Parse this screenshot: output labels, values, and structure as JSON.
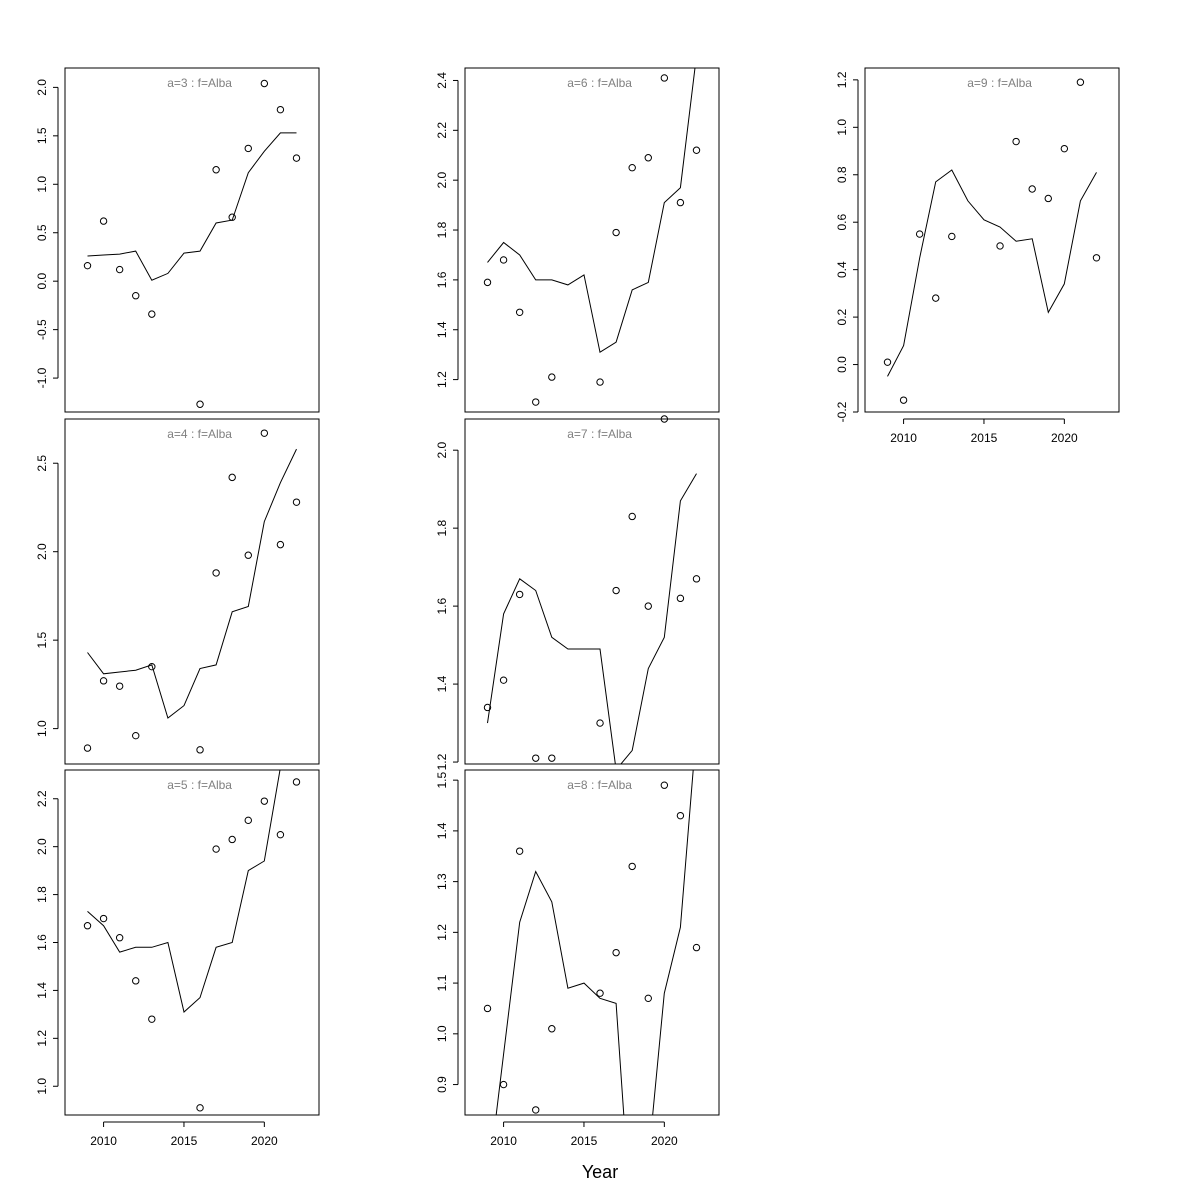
{
  "chart_data": {
    "type": "scatter",
    "xlabel": "Year",
    "x_ticks": [
      2010,
      2015,
      2020
    ],
    "panels": [
      {
        "label": "a=3  :  f=Alba",
        "x": [
          2009,
          2010,
          2011,
          2012,
          2013,
          2014,
          2015,
          2016,
          2017,
          2018,
          2019,
          2020,
          2021,
          2022
        ],
        "observed": [
          0.16,
          0.62,
          0.12,
          -0.15,
          -0.34,
          null,
          null,
          -1.27,
          1.15,
          0.66,
          1.37,
          2.04,
          1.77,
          1.27
        ],
        "fitted": [
          0.26,
          0.27,
          0.28,
          0.31,
          0.01,
          0.08,
          0.29,
          0.31,
          0.6,
          0.63,
          1.12,
          1.34,
          1.53,
          1.53
        ],
        "ylim": [
          -1.35,
          2.2
        ],
        "y_ticks": [
          -1.0,
          -0.5,
          0.0,
          0.5,
          1.0,
          1.5,
          2.0
        ],
        "y_tick_labels": [
          "-1.0",
          "-0.5",
          "0.0",
          "0.5",
          "1.0",
          "1.5",
          "2.0"
        ]
      },
      {
        "label": "a=4  :  f=Alba",
        "x": [
          2009,
          2010,
          2011,
          2012,
          2013,
          2014,
          2015,
          2016,
          2017,
          2018,
          2019,
          2020,
          2021,
          2022
        ],
        "observed": [
          0.89,
          1.27,
          1.24,
          0.96,
          1.35,
          null,
          null,
          0.88,
          1.88,
          2.42,
          1.98,
          2.67,
          2.04,
          2.28
        ],
        "fitted": [
          1.43,
          1.31,
          1.32,
          1.33,
          1.36,
          1.06,
          1.13,
          1.34,
          1.36,
          1.66,
          1.69,
          2.17,
          2.39,
          2.58
        ],
        "ylim": [
          0.8,
          2.75
        ],
        "y_ticks": [
          1.0,
          1.5,
          2.0,
          2.5
        ],
        "y_tick_labels": [
          "1.0",
          "1.5",
          "2.0",
          "2.5"
        ]
      },
      {
        "label": "a=5  :  f=Alba",
        "x": [
          2009,
          2010,
          2011,
          2012,
          2013,
          2014,
          2015,
          2016,
          2017,
          2018,
          2019,
          2020,
          2021,
          2022
        ],
        "observed": [
          1.67,
          1.7,
          1.62,
          1.44,
          1.28,
          null,
          null,
          0.91,
          1.99,
          2.03,
          2.11,
          2.19,
          2.05,
          2.27
        ],
        "fitted": [
          1.73,
          1.67,
          1.56,
          1.58,
          1.58,
          1.6,
          1.31,
          1.37,
          1.58,
          1.6,
          1.9,
          1.94,
          2.33,
          2.72
        ],
        "ylim": [
          0.88,
          2.32
        ],
        "y_ticks": [
          1.0,
          1.2,
          1.4,
          1.6,
          1.8,
          2.0,
          2.2
        ],
        "y_tick_labels": [
          "1.0",
          "1.2",
          "1.4",
          "1.6",
          "1.8",
          "2.0",
          "2.2"
        ]
      },
      {
        "label": "a=6  :  f=Alba",
        "x": [
          2009,
          2010,
          2011,
          2012,
          2013,
          2014,
          2015,
          2016,
          2017,
          2018,
          2019,
          2020,
          2021,
          2022
        ],
        "observed": [
          1.59,
          1.68,
          1.47,
          1.11,
          1.21,
          null,
          null,
          1.19,
          1.79,
          2.05,
          2.09,
          2.41,
          1.91,
          2.12
        ],
        "fitted": [
          1.67,
          1.75,
          1.7,
          1.6,
          1.6,
          1.58,
          1.62,
          1.31,
          1.35,
          1.56,
          1.59,
          1.91,
          1.97,
          2.5
        ],
        "ylim": [
          1.07,
          2.45
        ],
        "y_ticks": [
          1.2,
          1.4,
          1.6,
          1.8,
          2.0,
          2.2,
          2.4
        ],
        "y_tick_labels": [
          "1.2",
          "1.4",
          "1.6",
          "1.8",
          "2.0",
          "2.2",
          "2.4"
        ]
      },
      {
        "label": "a=7  :  f=Alba",
        "x": [
          2009,
          2010,
          2011,
          2012,
          2013,
          2014,
          2015,
          2016,
          2017,
          2018,
          2019,
          2020,
          2021,
          2022
        ],
        "observed": [
          1.34,
          1.41,
          1.63,
          1.21,
          1.21,
          null,
          null,
          1.3,
          1.64,
          1.83,
          1.6,
          2.08,
          1.62,
          1.67
        ],
        "fitted": [
          1.3,
          1.58,
          1.67,
          1.64,
          1.52,
          1.49,
          1.49,
          1.49,
          1.18,
          1.23,
          1.44,
          1.52,
          1.87,
          1.94
        ],
        "ylim": [
          1.195,
          2.08
        ],
        "y_ticks": [
          1.2,
          1.4,
          1.6,
          1.8,
          2.0
        ],
        "y_tick_labels": [
          "1.2",
          "1.4",
          "1.6",
          "1.8",
          "2.0"
        ]
      },
      {
        "label": "a=8  :  f=Alba",
        "x": [
          2009,
          2010,
          2011,
          2012,
          2013,
          2014,
          2015,
          2016,
          2017,
          2018,
          2019,
          2020,
          2021,
          2022
        ],
        "observed": [
          1.05,
          0.9,
          1.36,
          0.85,
          1.01,
          null,
          null,
          1.08,
          1.16,
          1.33,
          1.07,
          1.49,
          1.43,
          1.17
        ],
        "fitted": [
          0.7,
          0.96,
          1.22,
          1.32,
          1.26,
          1.09,
          1.1,
          1.07,
          1.06,
          0.6,
          0.75,
          1.08,
          1.21,
          1.6
        ],
        "ylim": [
          0.84,
          1.52
        ],
        "y_ticks": [
          0.9,
          1.0,
          1.1,
          1.2,
          1.3,
          1.4,
          1.5
        ],
        "y_tick_labels": [
          "0.9",
          "1.0",
          "1.1",
          "1.2",
          "1.3",
          "1.4",
          "1.5"
        ]
      },
      {
        "label": "a=9  :  f=Alba",
        "x": [
          2009,
          2010,
          2011,
          2012,
          2013,
          2014,
          2015,
          2016,
          2017,
          2018,
          2019,
          2020,
          2021,
          2022
        ],
        "observed": [
          0.01,
          -0.15,
          0.55,
          0.28,
          0.54,
          null,
          null,
          0.5,
          0.94,
          0.74,
          0.7,
          0.91,
          1.19,
          0.45
        ],
        "fitted": [
          -0.05,
          0.08,
          0.45,
          0.77,
          0.82,
          0.69,
          0.61,
          0.58,
          0.52,
          0.53,
          0.22,
          0.34,
          0.69,
          0.81
        ],
        "ylim": [
          -0.2,
          1.25
        ],
        "y_ticks": [
          -0.2,
          0.0,
          0.2,
          0.4,
          0.6,
          0.8,
          1.0,
          1.2
        ],
        "y_tick_labels": [
          "-0.2",
          "0.0",
          "0.2",
          "0.4",
          "0.6",
          "0.8",
          "1.0",
          "1.2"
        ]
      }
    ]
  }
}
